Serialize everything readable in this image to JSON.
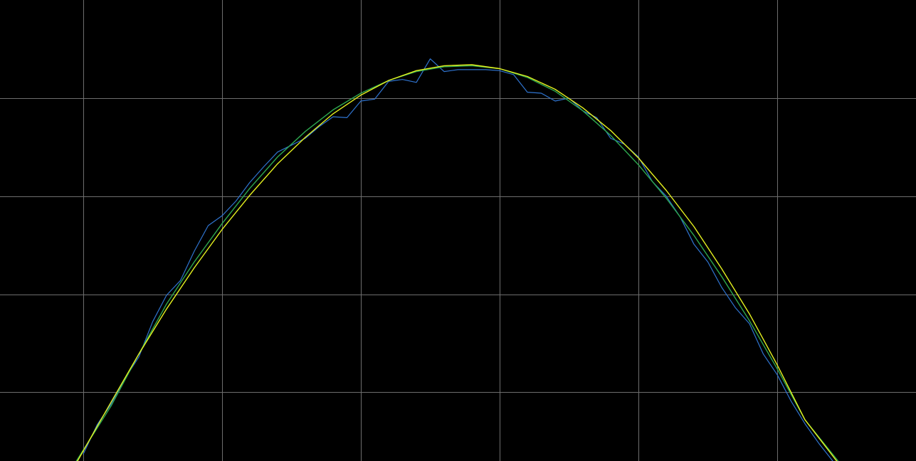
{
  "chart_data": {
    "type": "line",
    "title": "",
    "xlabel": "",
    "ylabel": "",
    "grid": true,
    "legend": "none",
    "xlim": [
      -3.6,
      3.0
    ],
    "ylim": [
      -0.7,
      4.0
    ],
    "x_gridlines": [
      -3,
      -2,
      -1,
      0,
      1,
      2
    ],
    "y_gridlines": [
      0,
      1,
      2,
      3
    ],
    "colors": {
      "background": "#000000",
      "grid": "#6e6e6e",
      "noisy_series": "#2f74d0",
      "fit_series_1": "#2ea84f",
      "fit_series_2": "#e6f21f"
    },
    "series": [
      {
        "color": "#2f74d0",
        "kind": "noisy",
        "x": [
          -3.0,
          -2.9,
          -2.8,
          -2.7,
          -2.6,
          -2.5,
          -2.4,
          -2.3,
          -2.2,
          -2.1,
          -2.0,
          -1.9,
          -1.8,
          -1.7,
          -1.6,
          -1.5,
          -1.4,
          -1.3,
          -1.2,
          -1.1,
          -1.0,
          -0.9,
          -0.8,
          -0.7,
          -0.6,
          -0.5,
          -0.4,
          -0.3,
          -0.2,
          -0.1,
          0.0,
          0.1,
          0.2,
          0.3,
          0.4,
          0.5,
          0.6,
          0.7,
          0.8,
          0.9,
          1.0,
          1.1,
          1.2,
          1.3,
          1.4,
          1.5,
          1.6,
          1.7,
          1.8,
          1.9,
          2.0,
          2.1,
          2.2,
          2.3,
          2.4
        ],
        "y": [
          -0.63,
          -0.33,
          -0.12,
          0.14,
          0.36,
          0.72,
          0.99,
          1.14,
          1.44,
          1.7,
          1.8,
          1.95,
          2.14,
          2.3,
          2.45,
          2.52,
          2.59,
          2.71,
          2.81,
          2.8,
          2.97,
          2.99,
          3.17,
          3.19,
          3.16,
          3.4,
          3.27,
          3.29,
          3.29,
          3.29,
          3.28,
          3.24,
          3.06,
          3.05,
          2.97,
          3.0,
          2.87,
          2.8,
          2.59,
          2.53,
          2.4,
          2.15,
          2.0,
          1.79,
          1.51,
          1.33,
          1.07,
          0.86,
          0.7,
          0.39,
          0.18,
          -0.09,
          -0.32,
          -0.52,
          -0.7
        ]
      },
      {
        "color": "#2ea84f",
        "kind": "fit",
        "x": [
          -3.05,
          -2.8,
          -2.6,
          -2.4,
          -2.2,
          -2.0,
          -1.8,
          -1.6,
          -1.4,
          -1.2,
          -1.0,
          -0.8,
          -0.6,
          -0.4,
          -0.2,
          0.0,
          0.2,
          0.4,
          0.6,
          0.8,
          1.0,
          1.2,
          1.4,
          1.6,
          1.8,
          2.0,
          2.2,
          2.45
        ],
        "y": [
          -0.7,
          -0.14,
          0.39,
          0.9,
          1.33,
          1.72,
          2.08,
          2.4,
          2.66,
          2.88,
          3.05,
          3.18,
          3.27,
          3.32,
          3.33,
          3.3,
          3.21,
          3.07,
          2.87,
          2.62,
          2.32,
          1.98,
          1.6,
          1.18,
          0.73,
          0.24,
          -0.28,
          -0.72
        ]
      },
      {
        "color": "#e6f21f",
        "kind": "fit",
        "x": [
          -3.05,
          -2.8,
          -2.6,
          -2.4,
          -2.2,
          -2.0,
          -1.8,
          -1.6,
          -1.4,
          -1.2,
          -1.0,
          -0.8,
          -0.6,
          -0.4,
          -0.2,
          0.0,
          0.2,
          0.4,
          0.6,
          0.8,
          1.0,
          1.2,
          1.4,
          1.6,
          1.8,
          2.0,
          2.2,
          2.45
        ],
        "y": [
          -0.72,
          -0.1,
          0.39,
          0.85,
          1.27,
          1.66,
          2.01,
          2.33,
          2.6,
          2.84,
          3.03,
          3.18,
          3.28,
          3.33,
          3.34,
          3.3,
          3.22,
          3.09,
          2.9,
          2.67,
          2.39,
          2.06,
          1.69,
          1.26,
          0.8,
          0.28,
          -0.28,
          -0.74
        ]
      }
    ]
  }
}
